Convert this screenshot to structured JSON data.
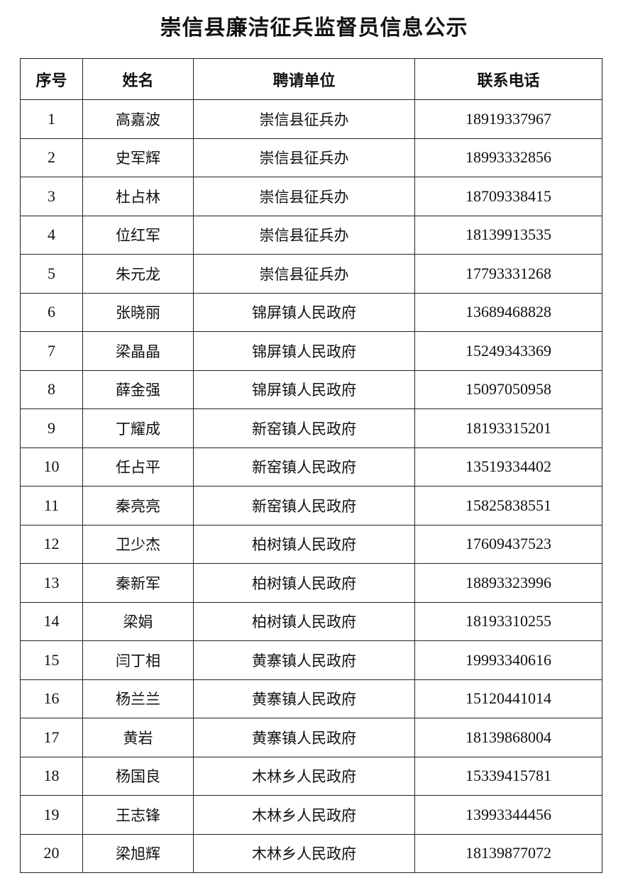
{
  "title": "崇信县廉洁征兵监督员信息公示",
  "table": {
    "headers": [
      "序号",
      "姓名",
      "聘请单位",
      "联系电话"
    ],
    "rows": [
      [
        "1",
        "高嘉波",
        "崇信县征兵办",
        "18919337967"
      ],
      [
        "2",
        "史军辉",
        "崇信县征兵办",
        "18993332856"
      ],
      [
        "3",
        "杜占林",
        "崇信县征兵办",
        "18709338415"
      ],
      [
        "4",
        "位红军",
        "崇信县征兵办",
        "18139913535"
      ],
      [
        "5",
        "朱元龙",
        "崇信县征兵办",
        "17793331268"
      ],
      [
        "6",
        "张晓丽",
        "锦屏镇人民政府",
        "13689468828"
      ],
      [
        "7",
        "梁晶晶",
        "锦屏镇人民政府",
        "15249343369"
      ],
      [
        "8",
        "薛金强",
        "锦屏镇人民政府",
        "15097050958"
      ],
      [
        "9",
        "丁耀成",
        "新窑镇人民政府",
        "18193315201"
      ],
      [
        "10",
        "任占平",
        "新窑镇人民政府",
        "13519334402"
      ],
      [
        "11",
        "秦亮亮",
        "新窑镇人民政府",
        "15825838551"
      ],
      [
        "12",
        "卫少杰",
        "柏树镇人民政府",
        "17609437523"
      ],
      [
        "13",
        "秦新军",
        "柏树镇人民政府",
        "18893323996"
      ],
      [
        "14",
        "梁娟",
        "柏树镇人民政府",
        "18193310255"
      ],
      [
        "15",
        "闫丁相",
        "黄寨镇人民政府",
        "19993340616"
      ],
      [
        "16",
        "杨兰兰",
        "黄寨镇人民政府",
        "15120441014"
      ],
      [
        "17",
        "黄岩",
        "黄寨镇人民政府",
        "18139868004"
      ],
      [
        "18",
        "杨国良",
        "木林乡人民政府",
        "15339415781"
      ],
      [
        "19",
        "王志锋",
        "木林乡人民政府",
        "13993344456"
      ],
      [
        "20",
        "梁旭辉",
        "木林乡人民政府",
        "18139877072"
      ]
    ]
  }
}
